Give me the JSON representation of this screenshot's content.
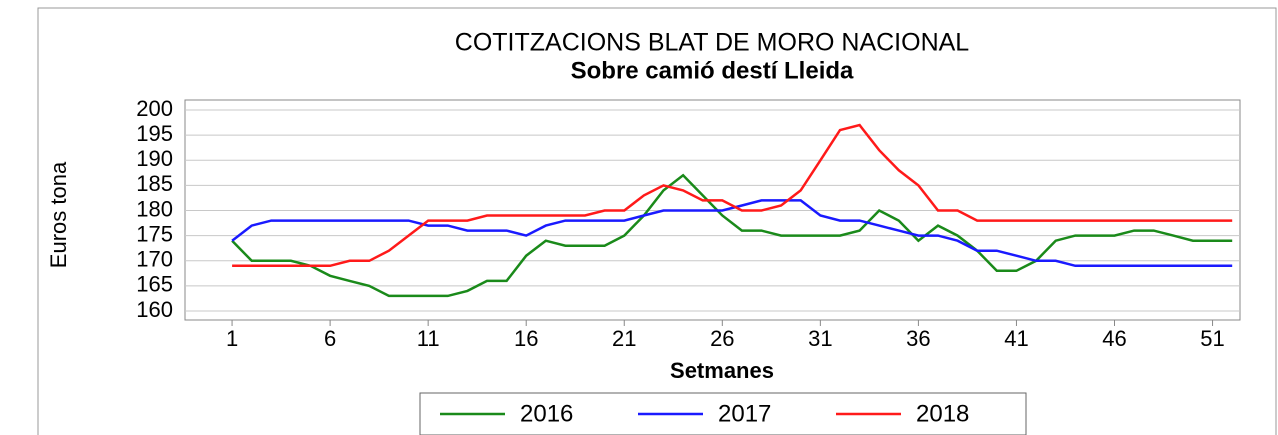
{
  "chart_data": {
    "type": "line",
    "title": "COTITZACIONS BLAT DE MORO NACIONAL",
    "subtitle": "Sobre camió destí Lleida",
    "xlabel": "Setmanes",
    "ylabel": "Euros tona",
    "x": [
      1,
      2,
      3,
      4,
      5,
      6,
      7,
      8,
      9,
      10,
      11,
      12,
      13,
      14,
      15,
      16,
      17,
      18,
      19,
      20,
      21,
      22,
      23,
      24,
      25,
      26,
      27,
      28,
      29,
      30,
      31,
      32,
      33,
      34,
      35,
      36,
      37,
      38,
      39,
      40,
      41,
      42,
      43,
      44,
      45,
      46,
      47,
      48,
      49,
      50,
      51,
      52
    ],
    "xlim": [
      -1.4,
      52.4
    ],
    "xticks": [
      1,
      6,
      11,
      16,
      21,
      26,
      31,
      36,
      41,
      46,
      51
    ],
    "ylim": [
      160,
      200
    ],
    "yticks": [
      160,
      165,
      170,
      175,
      180,
      185,
      190,
      195,
      200
    ],
    "grid": true,
    "legend": "bottom",
    "series": [
      {
        "name": "2016",
        "color": "#1a8a1a",
        "values": [
          174,
          170,
          170,
          170,
          169,
          167,
          166,
          165,
          163,
          163,
          163,
          163,
          164,
          166,
          166,
          171,
          174,
          173,
          173,
          173,
          175,
          179,
          184,
          187,
          183,
          179,
          176,
          176,
          175,
          175,
          175,
          175,
          176,
          180,
          178,
          174,
          177,
          175,
          172,
          168,
          168,
          170,
          174,
          175,
          175,
          175,
          176,
          176,
          175,
          174,
          174,
          174
        ]
      },
      {
        "name": "2017",
        "color": "#1a1aff",
        "values": [
          174,
          177,
          178,
          178,
          178,
          178,
          178,
          178,
          178,
          178,
          177,
          177,
          176,
          176,
          176,
          175,
          177,
          178,
          178,
          178,
          178,
          179,
          180,
          180,
          180,
          180,
          181,
          182,
          182,
          182,
          179,
          178,
          178,
          177,
          176,
          175,
          175,
          174,
          172,
          172,
          171,
          170,
          170,
          169,
          169,
          169,
          169,
          169,
          169,
          169,
          169,
          169
        ]
      },
      {
        "name": "2018",
        "color": "#ff1a1a",
        "values": [
          169,
          169,
          169,
          169,
          169,
          169,
          170,
          170,
          172,
          175,
          178,
          178,
          178,
          179,
          179,
          179,
          179,
          179,
          179,
          180,
          180,
          183,
          185,
          184,
          182,
          182,
          180,
          180,
          181,
          184,
          190,
          196,
          197,
          192,
          188,
          185,
          180,
          180,
          178,
          178,
          178,
          178,
          178,
          178,
          178,
          178,
          178,
          178,
          178,
          178,
          178,
          178
        ]
      }
    ]
  }
}
